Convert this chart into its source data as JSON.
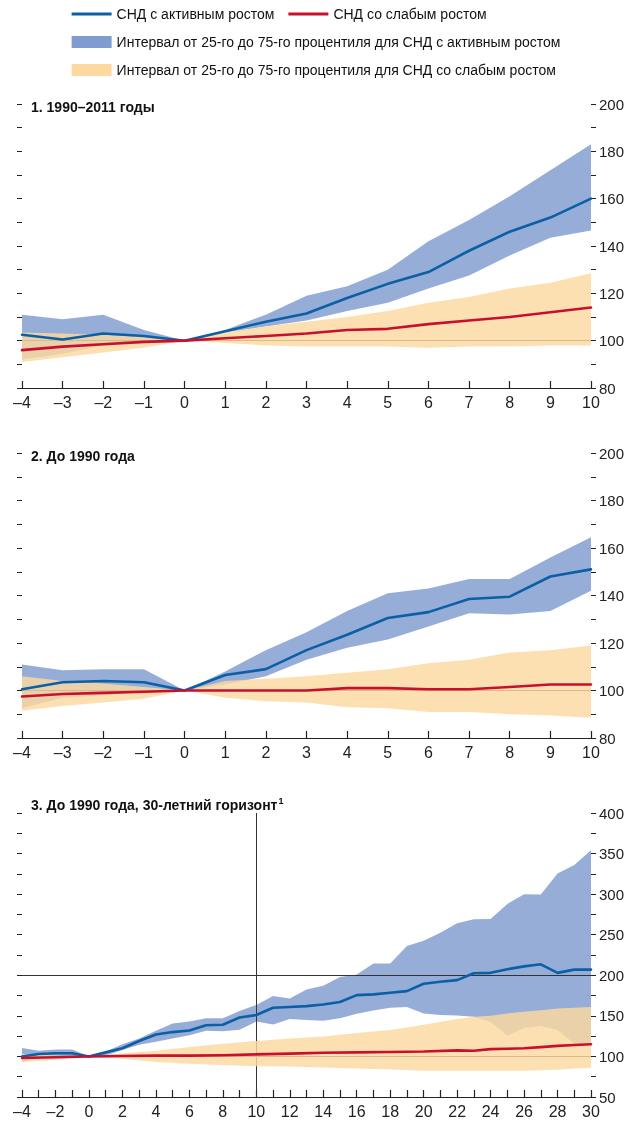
{
  "chart_data": [
    {
      "type": "line",
      "title": "1. 1990–2011 годы",
      "legend": "top",
      "marker": "none",
      "line_style": "solid",
      "grid": false,
      "x": [
        -4,
        -3,
        -2,
        -1,
        0,
        1,
        2,
        3,
        4,
        5,
        6,
        7,
        8,
        9,
        10
      ],
      "xlim": [
        -4,
        10
      ],
      "xticks": [
        {
          "value": -4,
          "label": "–4"
        },
        {
          "value": -3,
          "label": "–3"
        },
        {
          "value": -2,
          "label": "–2"
        },
        {
          "value": -1,
          "label": "–1"
        },
        0,
        1,
        2,
        3,
        4,
        5,
        6,
        7,
        8,
        9,
        10
      ],
      "ylim": [
        80,
        200
      ],
      "yticks": [
        80,
        {
          "value": 90,
          "label": null
        },
        100,
        {
          "value": 110,
          "label": null
        },
        120,
        {
          "value": 130,
          "label": null
        },
        140,
        {
          "value": 150,
          "label": null
        },
        160,
        {
          "value": 170,
          "label": null
        },
        180,
        {
          "value": 190,
          "label": null
        },
        200
      ],
      "ref_lines": [
        {
          "axis": "y",
          "value": 100,
          "color": "#333333"
        }
      ],
      "series": [
        {
          "name": "СНД с активным ростом",
          "color": "#0b5fa5",
          "values": [
            102.5,
            100.5,
            103,
            102,
            100,
            104,
            108,
            111.5,
            118,
            124,
            129,
            138,
            146,
            152,
            160
          ]
        },
        {
          "name": "СНД со слабым ростом",
          "color": "#c8102e",
          "values": [
            96,
            97.5,
            98.5,
            99.5,
            100,
            101,
            102,
            103,
            104.5,
            105,
            107,
            108.5,
            110,
            112,
            114
          ]
        },
        {
          "type": "area",
          "name": "Интервал от 25-го до 75-го процентиля для СНД с активным ростом",
          "color": "#7f9bd0",
          "values": [
            null,
            null,
            null,
            null,
            null,
            null,
            null,
            null,
            null,
            null,
            null,
            null,
            null,
            null,
            null
          ],
          "lower": [
            92,
            94.5,
            98,
            99,
            100,
            103.5,
            106,
            108.5,
            112.5,
            116,
            122,
            127.5,
            136,
            143.5,
            146.5
          ],
          "upper": [
            111,
            109,
            111,
            104.5,
            100,
            104.5,
            111,
            119,
            123,
            130,
            142,
            151,
            161,
            172,
            183
          ]
        },
        {
          "type": "area",
          "name": "Интервал от 25-го до 75-го процентиля для СНД со слабым ростом",
          "color": "#fdd9a0",
          "values": [
            null,
            null,
            null,
            null,
            null,
            null,
            null,
            null,
            null,
            null,
            null,
            null,
            null,
            null,
            null
          ],
          "lower": [
            91,
            93,
            95,
            97,
            100,
            99,
            98,
            97.5,
            97.5,
            97.5,
            97,
            97.5,
            97.5,
            98,
            98
          ],
          "upper": [
            103.5,
            103,
            102.5,
            101.5,
            100,
            103.5,
            106,
            108,
            110,
            112.5,
            116,
            118.5,
            122,
            124.5,
            128.5
          ]
        }
      ]
    },
    {
      "type": "line",
      "title": "2. До 1990 года",
      "marker": "none",
      "line_style": "solid",
      "grid": false,
      "x": [
        -4,
        -3,
        -2,
        -1,
        0,
        1,
        2,
        3,
        4,
        5,
        6,
        7,
        8,
        9,
        10
      ],
      "xlim": [
        -4,
        10
      ],
      "xticks": [
        {
          "value": -4,
          "label": "–4"
        },
        {
          "value": -3,
          "label": "–3"
        },
        {
          "value": -2,
          "label": "–2"
        },
        {
          "value": -1,
          "label": "–1"
        },
        0,
        1,
        2,
        3,
        4,
        5,
        6,
        7,
        8,
        9,
        10
      ],
      "ylim": [
        80,
        200
      ],
      "yticks": [
        80,
        {
          "value": 90,
          "label": null
        },
        100,
        {
          "value": 110,
          "label": null
        },
        120,
        {
          "value": 130,
          "label": null
        },
        140,
        {
          "value": 150,
          "label": null
        },
        160,
        {
          "value": 170,
          "label": null
        },
        180,
        {
          "value": 190,
          "label": null
        },
        200
      ],
      "ref_lines": [
        {
          "axis": "y",
          "value": 100,
          "color": "#333333"
        }
      ],
      "series": [
        {
          "color": "#0b5fa5",
          "values": [
            100.5,
            103.5,
            104,
            103.5,
            100,
            106.5,
            109,
            117,
            123.5,
            130.5,
            133,
            138.5,
            139.5,
            148,
            151
          ]
        },
        {
          "color": "#c8102e",
          "values": [
            97.5,
            98.5,
            99,
            99.5,
            100,
            100,
            100,
            100,
            101,
            101,
            100.5,
            100.5,
            101.5,
            102.5,
            102.5
          ]
        },
        {
          "type": "area",
          "color": "#7f9bd0",
          "values": [
            null,
            null,
            null,
            null,
            null,
            null,
            null,
            null,
            null,
            null,
            null,
            null,
            null,
            null,
            null
          ],
          "lower": [
            92.5,
            97,
            98,
            99.5,
            100,
            102.5,
            106,
            113,
            118,
            121.5,
            127,
            132.5,
            132,
            133.5,
            142
          ],
          "upper": [
            111,
            108.5,
            109,
            109,
            100,
            108,
            117,
            124.5,
            133.5,
            141,
            143,
            147,
            147,
            156,
            164.5
          ]
        },
        {
          "type": "area",
          "color": "#fdd9a0",
          "values": [
            null,
            null,
            null,
            null,
            null,
            null,
            null,
            null,
            null,
            null,
            null,
            null,
            null,
            null,
            null
          ],
          "lower": [
            91.5,
            93.5,
            95,
            96.5,
            100,
            97,
            95.5,
            95,
            93,
            92.5,
            91,
            91,
            90,
            89.5,
            88.5
          ],
          "upper": [
            106,
            104,
            103,
            101.5,
            100,
            104,
            105,
            106,
            107.5,
            109,
            111.5,
            113,
            116,
            117,
            119
          ]
        }
      ]
    },
    {
      "type": "line",
      "title": "3. До 1990 года, 30-летний горизонт$^{1}$",
      "marker": "none",
      "line_style": "solid",
      "grid": false,
      "x": [
        -4,
        -3,
        -2,
        -1,
        0,
        1,
        2,
        3,
        4,
        5,
        6,
        7,
        8,
        9,
        10,
        11,
        12,
        13,
        14,
        15,
        16,
        17,
        18,
        19,
        20,
        21,
        22,
        23,
        24,
        25,
        26,
        27,
        28,
        29,
        30
      ],
      "xlim": [
        -4,
        30
      ],
      "xticks": [
        {
          "value": -4,
          "label": "–4"
        },
        {
          "value": -3,
          "label": null
        },
        {
          "value": -2,
          "label": "–2"
        },
        {
          "value": -1,
          "label": null
        },
        0,
        {
          "value": 1,
          "label": null
        },
        2,
        {
          "value": 3,
          "label": null
        },
        4,
        {
          "value": 5,
          "label": null
        },
        6,
        {
          "value": 7,
          "label": null
        },
        8,
        {
          "value": 9,
          "label": null
        },
        10,
        {
          "value": 11,
          "label": null
        },
        12,
        {
          "value": 13,
          "label": null
        },
        14,
        {
          "value": 15,
          "label": null
        },
        16,
        {
          "value": 17,
          "label": null
        },
        18,
        {
          "value": 19,
          "label": null
        },
        20,
        {
          "value": 21,
          "label": null
        },
        22,
        {
          "value": 23,
          "label": null
        },
        24,
        {
          "value": 25,
          "label": null
        },
        26,
        {
          "value": 27,
          "label": null
        },
        28,
        {
          "value": 29,
          "label": null
        },
        30
      ],
      "ylim": [
        50,
        400
      ],
      "yticks": [
        50,
        {
          "value": 75,
          "label": null
        },
        100,
        {
          "value": 125,
          "label": null
        },
        150,
        {
          "value": 175,
          "label": null
        },
        200,
        {
          "value": 225,
          "label": null
        },
        250,
        {
          "value": 275,
          "label": null
        },
        300,
        {
          "value": 325,
          "label": null
        },
        350,
        {
          "value": 375,
          "label": null
        },
        400
      ],
      "ref_lines": [
        {
          "axis": "y",
          "value": 100,
          "color": "#333333"
        },
        {
          "axis": "y",
          "value": 200,
          "color": "#333333"
        },
        {
          "axis": "x",
          "value": 10,
          "color": "#333333"
        }
      ],
      "series": [
        {
          "color": "#0b5fa5",
          "values": [
            100,
            103,
            104,
            104,
            100,
            105,
            110,
            119,
            127,
            130,
            132,
            138.5,
            139,
            148,
            151,
            160,
            161,
            162,
            164,
            167,
            175.5,
            176.5,
            178.5,
            180.5,
            189.5,
            192,
            194,
            202.5,
            203,
            207.5,
            211,
            213.5,
            203,
            207,
            207
          ]
        },
        {
          "color": "#c8102e",
          "x": [
            -4,
            -2,
            0,
            2,
            4,
            6,
            8,
            10,
            12,
            14,
            16,
            18,
            20,
            22,
            23,
            24,
            25,
            26,
            27,
            28,
            29,
            30
          ],
          "values": [
            98,
            99,
            100,
            100.5,
            101,
            101,
            101.5,
            102.5,
            103.5,
            104.5,
            105,
            105.5,
            106,
            107.5,
            107,
            109,
            109.5,
            110,
            111.5,
            113,
            114,
            115
          ]
        },
        {
          "type": "area",
          "color": "#7f9bd0",
          "values": [
            null,
            null,
            null,
            null,
            null,
            null,
            null,
            null,
            null,
            null,
            null,
            null,
            null,
            null,
            null,
            null,
            null,
            null,
            null,
            null,
            null,
            null,
            null,
            null,
            null,
            null,
            null,
            null,
            null,
            null,
            null,
            null,
            null,
            null,
            null
          ],
          "lower": [
            93,
            98,
            100,
            100.5,
            100,
            101,
            108,
            114.5,
            118,
            122,
            126,
            131.5,
            131,
            133,
            143,
            139.5,
            146,
            145,
            144,
            147,
            152.5,
            156.5,
            160,
            161,
            153,
            151,
            150.5,
            149,
            142.5,
            125.5,
            135,
            137.5,
            132.5,
            115.5,
            115.5
          ],
          "upper": [
            110.5,
            107,
            108.5,
            108.5,
            100,
            106,
            115,
            122,
            131.5,
            140.5,
            143,
            147,
            147,
            156,
            163.5,
            174.5,
            171.5,
            182.5,
            187,
            198,
            201,
            214.5,
            214.5,
            236,
            242.5,
            252.5,
            264,
            269,
            269.5,
            288,
            300,
            299.5,
            325.5,
            336,
            354
          ]
        },
        {
          "type": "area",
          "color": "#fdd9a0",
          "x": [
            -4,
            -2,
            0,
            2,
            4,
            6,
            8,
            10,
            12,
            14,
            16,
            18,
            20,
            22,
            23,
            24,
            25,
            26,
            27,
            28,
            29,
            30
          ],
          "values": [
            null,
            null,
            null,
            null,
            null,
            null,
            null,
            null,
            null,
            null,
            null,
            null,
            null,
            null,
            null,
            null,
            null,
            null,
            null,
            null,
            null,
            null
          ],
          "lower": [
            93,
            96,
            100,
            97,
            93,
            91,
            89.5,
            88,
            87.5,
            86.5,
            85,
            84,
            82.5,
            82.5,
            82.5,
            82.5,
            82.5,
            82.5,
            83,
            83.5,
            85,
            86
          ],
          "upper": [
            103,
            101,
            100,
            104,
            107,
            111.5,
            115.5,
            119,
            122,
            124.5,
            129,
            132.5,
            139,
            146,
            149,
            150,
            153,
            155,
            157,
            159,
            160,
            161
          ]
        }
      ]
    }
  ]
}
